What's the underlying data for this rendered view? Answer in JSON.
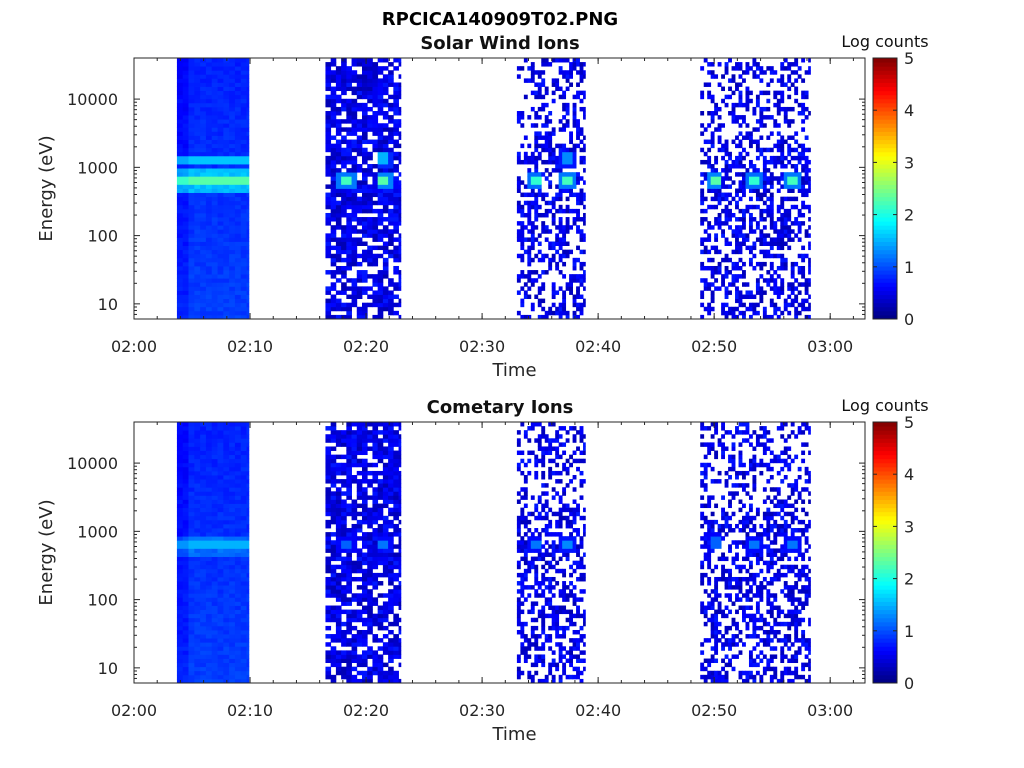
{
  "figure_title": "RPCICA140909T02.PNG",
  "colorbar_label": "Log counts",
  "colors": {
    "background": "#ffffff",
    "axis": "#262626"
  },
  "colormap": "jet",
  "chart_data": [
    {
      "type": "heatmap",
      "title": "Solar Wind Ions",
      "xlabel": "Time",
      "ylabel": "Energy (eV)",
      "x_ticks": [
        "02:00",
        "02:10",
        "02:20",
        "02:30",
        "02:40",
        "02:50",
        "03:00"
      ],
      "y_ticks": [
        "10",
        "100",
        "1000",
        "10000"
      ],
      "y_scale": "log",
      "ylim": [
        6,
        40000
      ],
      "xlim": [
        "02:00",
        "03:03"
      ],
      "colorbar_ticks": [
        "0",
        "1",
        "2",
        "3",
        "4",
        "5"
      ],
      "clim": [
        0,
        5
      ],
      "data_blocks": [
        {
          "start": "02:03.7",
          "end": "02:09.9",
          "character": "dense uniform",
          "peak_energy_eV": 650,
          "peak_log_counts": 2.3,
          "secondary_energy_eV": 1300,
          "secondary_log_counts": 1.6
        },
        {
          "start": "02:16.5",
          "end": "02:23.0",
          "character": "mixed",
          "peaks": [
            {
              "time": "02:18.3",
              "energy_eV": 650,
              "log_counts": 2.2
            },
            {
              "time": "02:21.5",
              "energy_eV": 650,
              "log_counts": 2.3
            },
            {
              "time": "02:21.5",
              "energy_eV": 1350,
              "log_counts": 1.5
            }
          ]
        },
        {
          "start": "02:33.0",
          "end": "02:38.9",
          "character": "sparse",
          "peaks": [
            {
              "time": "02:34.5",
              "energy_eV": 650,
              "log_counts": 2.1
            },
            {
              "time": "02:37.3",
              "energy_eV": 650,
              "log_counts": 2.2
            },
            {
              "time": "02:37.3",
              "energy_eV": 1350,
              "log_counts": 1.3
            }
          ]
        },
        {
          "start": "02:48.8",
          "end": "02:58.3",
          "character": "sparse",
          "peaks": [
            {
              "time": "02:50.0",
              "energy_eV": 650,
              "log_counts": 2.3
            },
            {
              "time": "02:53.5",
              "energy_eV": 650,
              "log_counts": 2.1
            },
            {
              "time": "02:56.7",
              "energy_eV": 650,
              "log_counts": 2.2
            }
          ]
        }
      ]
    },
    {
      "type": "heatmap",
      "title": "Cometary Ions",
      "xlabel": "Time",
      "ylabel": "Energy (eV)",
      "x_ticks": [
        "02:00",
        "02:10",
        "02:20",
        "02:30",
        "02:40",
        "02:50",
        "03:00"
      ],
      "y_ticks": [
        "10",
        "100",
        "1000",
        "10000"
      ],
      "y_scale": "log",
      "ylim": [
        6,
        40000
      ],
      "xlim": [
        "02:00",
        "03:03"
      ],
      "colorbar_ticks": [
        "0",
        "1",
        "2",
        "3",
        "4",
        "5"
      ],
      "clim": [
        0,
        5
      ],
      "data_blocks": [
        {
          "start": "02:03.7",
          "end": "02:09.9",
          "character": "dense uniform",
          "peak_energy_eV": 620,
          "peak_log_counts": 1.5
        },
        {
          "start": "02:16.5",
          "end": "02:23.0",
          "character": "mixed",
          "peaks": [
            {
              "time": "02:18.3",
              "energy_eV": 620,
              "log_counts": 1.1
            },
            {
              "time": "02:21.5",
              "energy_eV": 620,
              "log_counts": 1.2
            }
          ]
        },
        {
          "start": "02:33.0",
          "end": "02:38.9",
          "character": "sparse",
          "peaks": [
            {
              "time": "02:34.5",
              "energy_eV": 620,
              "log_counts": 1.2
            },
            {
              "time": "02:37.3",
              "energy_eV": 620,
              "log_counts": 1.3
            }
          ]
        },
        {
          "start": "02:48.8",
          "end": "02:58.3",
          "character": "sparse",
          "peaks": [
            {
              "time": "02:50.0",
              "energy_eV": 700,
              "log_counts": 1.1
            },
            {
              "time": "02:53.5",
              "energy_eV": 620,
              "log_counts": 1.2
            },
            {
              "time": "02:56.7",
              "energy_eV": 620,
              "log_counts": 1.2
            }
          ]
        }
      ]
    }
  ]
}
